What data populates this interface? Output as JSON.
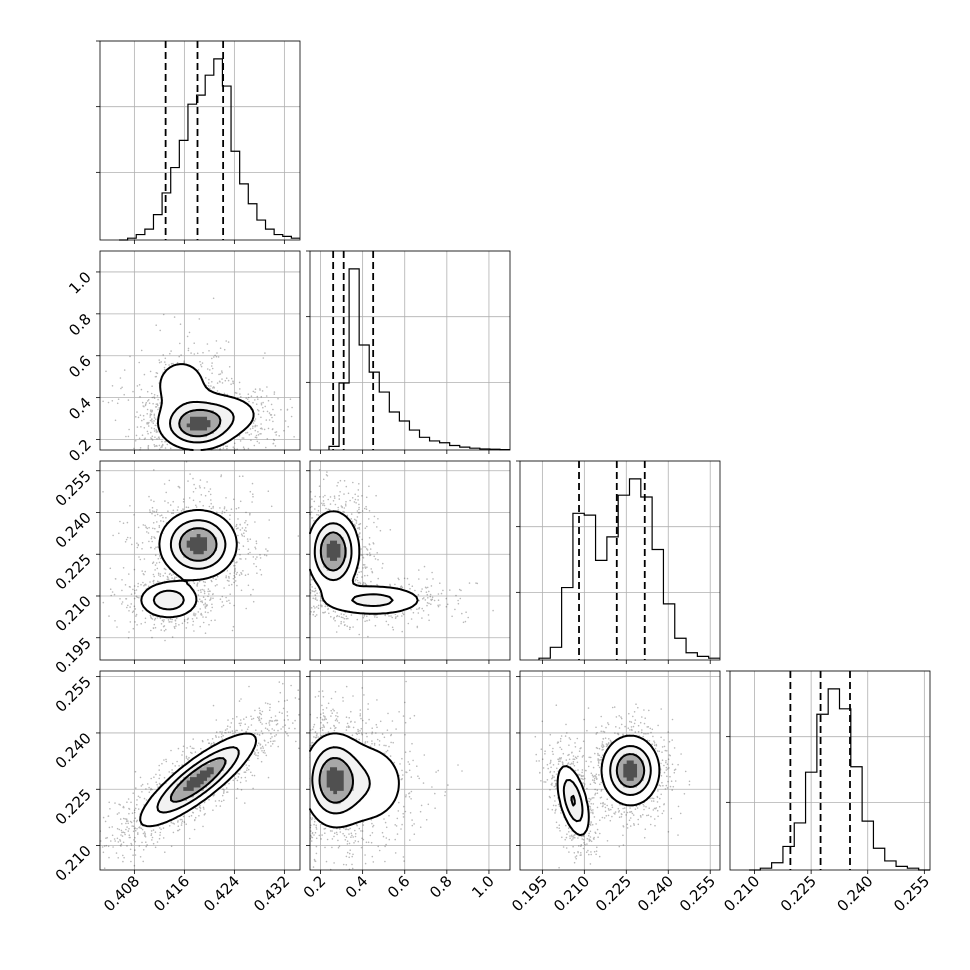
{
  "chart_data": {
    "type": "corner",
    "title": "",
    "grid": true,
    "parameters": [
      {
        "range": [
          0.4025,
          0.4345
        ],
        "ticks": [
          "0.408",
          "0.416",
          "0.424",
          "0.432"
        ]
      },
      {
        "range": [
          0.15,
          1.1
        ],
        "ticks": [
          "0.2",
          "0.4",
          "0.6",
          "0.8",
          "1.0"
        ]
      },
      {
        "range": [
          0.187,
          0.2585
        ],
        "ticks": [
          "0.195",
          "0.210",
          "0.225",
          "0.240",
          "0.255"
        ]
      },
      {
        "range": [
          0.2035,
          0.2565
        ],
        "ticks": [
          "0.210",
          "0.225",
          "0.240",
          "0.255"
        ]
      }
    ],
    "histograms": [
      {
        "quantiles": [
          0.413,
          0.4181,
          0.4222
        ],
        "values": [
          0.0,
          0.01,
          0.03,
          0.06,
          0.14,
          0.26,
          0.4,
          0.55,
          0.75,
          0.8,
          0.91,
          1.0,
          0.85,
          0.49,
          0.31,
          0.2,
          0.11,
          0.06,
          0.03,
          0.02,
          0.01
        ]
      },
      {
        "quantiles": [
          0.26,
          0.31,
          0.45
        ],
        "values": [
          0.02,
          0.37,
          1.0,
          0.58,
          0.43,
          0.32,
          0.21,
          0.16,
          0.11,
          0.07,
          0.05,
          0.04,
          0.025,
          0.016,
          0.01,
          0.006,
          0.004,
          0.002
        ]
      },
      {
        "quantiles": [
          0.2081,
          0.2216,
          0.2316
        ],
        "values": [
          0.01,
          0.07,
          0.4,
          0.81,
          0.8,
          0.55,
          0.68,
          0.91,
          1.0,
          0.9,
          0.61,
          0.31,
          0.12,
          0.04,
          0.02,
          0.01
        ]
      },
      {
        "quantiles": [
          0.2195,
          0.2275,
          0.2353
        ],
        "values": [
          0.0,
          0.01,
          0.04,
          0.13,
          0.26,
          0.54,
          0.86,
          1.0,
          0.89,
          0.57,
          0.27,
          0.12,
          0.05,
          0.02,
          0.01,
          0.0
        ]
      }
    ],
    "joint_densities": [
      {
        "x_param": 0,
        "y_param": 1,
        "modes": [
          {
            "x": 0.418,
            "y": 0.27,
            "sx": 0.003,
            "sy": 0.06,
            "w": 1.0
          },
          {
            "x": 0.4155,
            "y": 0.46,
            "sx": 0.003,
            "sy": 0.09,
            "w": 0.25
          },
          {
            "x": 0.4225,
            "y": 0.32,
            "sx": 0.0035,
            "sy": 0.06,
            "w": 0.3
          }
        ]
      },
      {
        "x_param": 0,
        "y_param": 2,
        "modes": [
          {
            "x": 0.4182,
            "y": 0.2285,
            "sx": 0.003,
            "sy": 0.006,
            "w": 1.0
          },
          {
            "x": 0.4135,
            "y": 0.2085,
            "sx": 0.0025,
            "sy": 0.0035,
            "w": 0.55
          }
        ]
      },
      {
        "x_param": 0,
        "y_param": 3,
        "modes": [
          {
            "x": 0.4182,
            "y": 0.2275,
            "sx": 0.0045,
            "sy": 0.006,
            "rho": 0.85,
            "w": 1.0
          }
        ]
      },
      {
        "x_param": 1,
        "y_param": 2,
        "modes": [
          {
            "x": 0.26,
            "y": 0.226,
            "sx": 0.06,
            "sy": 0.007,
            "w": 1.0
          },
          {
            "x": 0.45,
            "y": 0.2085,
            "sx": 0.13,
            "sy": 0.003,
            "w": 0.45
          }
        ]
      },
      {
        "x_param": 1,
        "y_param": 3,
        "modes": [
          {
            "x": 0.26,
            "y": 0.2275,
            "sx": 0.07,
            "sy": 0.006,
            "w": 1.0
          },
          {
            "x": 0.42,
            "y": 0.2265,
            "sx": 0.11,
            "sy": 0.0065,
            "w": 0.35
          }
        ]
      },
      {
        "x_param": 2,
        "y_param": 3,
        "modes": [
          {
            "x": 0.2265,
            "y": 0.23,
            "sx": 0.005,
            "sy": 0.0045,
            "w": 1.0
          },
          {
            "x": 0.206,
            "y": 0.222,
            "sx": 0.003,
            "sy": 0.005,
            "rho": -0.5,
            "w": 0.65
          }
        ]
      }
    ]
  }
}
